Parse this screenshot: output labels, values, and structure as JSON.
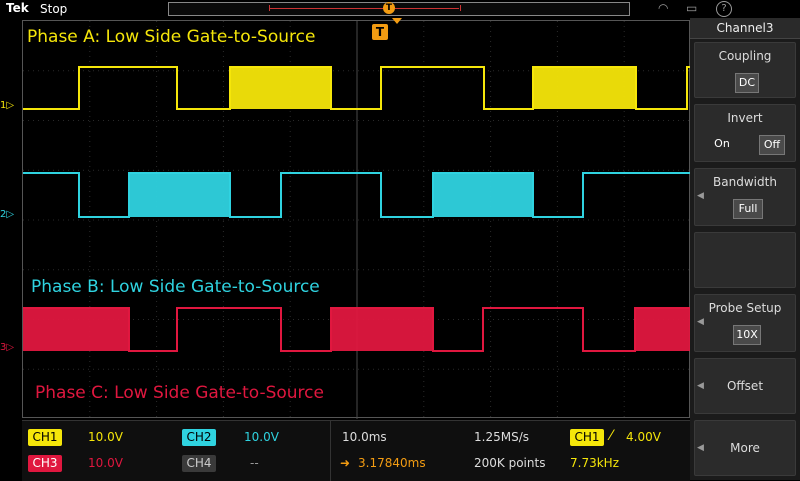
{
  "topbar": {
    "brand": "Tek",
    "run_state": "Stop",
    "trigger_marker": "T"
  },
  "topicons": [
    "wifi-icon",
    "monitor-icon",
    "help-icon"
  ],
  "grid": {
    "labels": {
      "phase_a": "Phase A: Low Side Gate-to-Source",
      "phase_b": "Phase B: Low Side Gate-to-Source",
      "phase_c": "Phase C: Low Side Gate-to-Source"
    },
    "channel_markers": [
      "1",
      "2",
      "3"
    ],
    "trigger_label": "T"
  },
  "side_menu": {
    "title": "Channel3",
    "coupling": {
      "label": "Coupling",
      "value": "DC"
    },
    "invert": {
      "label": "Invert",
      "on": "On",
      "off": "Off"
    },
    "bandwidth": {
      "label": "Bandwidth",
      "value": "Full"
    },
    "probe_setup": {
      "label": "Probe Setup",
      "value": "10X"
    },
    "offset": {
      "label": "Offset"
    },
    "more": {
      "label": "More"
    }
  },
  "bottom": {
    "ch1": {
      "name": "CH1",
      "scale": "10.0V"
    },
    "ch2": {
      "name": "CH2",
      "scale": "10.0V"
    },
    "ch3": {
      "name": "CH3",
      "scale": "10.0V"
    },
    "ch4": {
      "name": "CH4",
      "scale": "--"
    },
    "timebase": "10.0ms",
    "sample_rate": "1.25MS/s",
    "trigger": {
      "source": "CH1",
      "slope_icon": "rising-edge-icon",
      "level": "4.00V"
    },
    "position": "3.17840ms",
    "record_length": "200K points",
    "frequency": "7.73kHz"
  },
  "colors": {
    "ch1": "#f5e60a",
    "ch2": "#2fd3e0",
    "ch3": "#e0173f",
    "ch4": "#6a6a6a",
    "trigger": "#f39c12"
  }
}
